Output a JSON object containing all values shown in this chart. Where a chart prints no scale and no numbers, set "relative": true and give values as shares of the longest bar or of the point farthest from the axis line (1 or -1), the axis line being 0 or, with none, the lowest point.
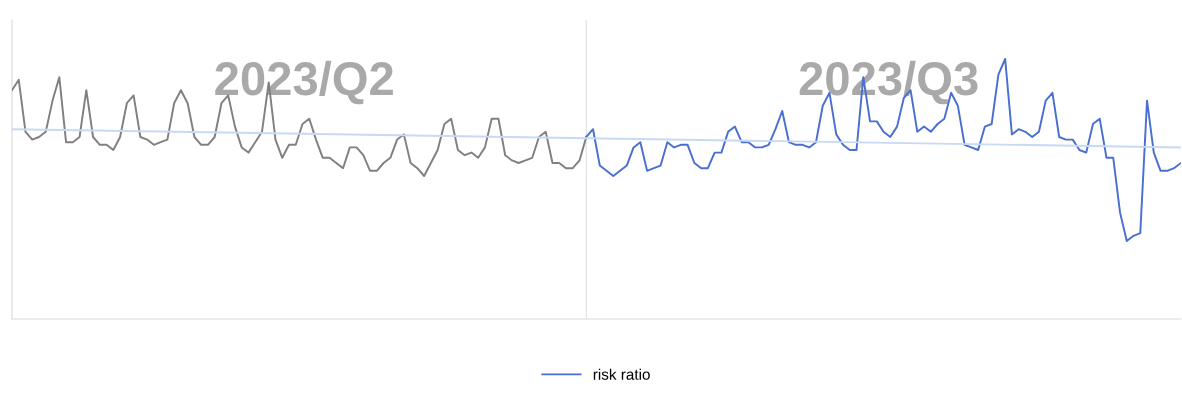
{
  "chart_data": {
    "type": "line",
    "relative": true,
    "legend": "bottom",
    "categories": [
      null,
      null,
      null,
      null,
      null,
      null,
      null,
      null,
      null,
      null,
      null,
      null,
      null,
      null,
      null,
      null,
      null,
      null,
      null,
      null,
      null,
      null,
      null,
      null,
      null,
      null,
      null,
      null,
      null,
      null,
      null,
      null,
      null,
      null,
      null,
      null,
      null,
      null,
      null,
      null,
      null,
      null,
      null,
      null,
      null,
      null,
      null,
      null,
      null,
      null,
      null,
      null,
      null,
      null,
      null,
      null,
      null,
      null,
      null,
      null,
      null,
      null,
      null,
      null,
      null,
      null,
      null,
      null,
      null,
      null,
      null,
      null,
      null,
      null,
      null,
      null,
      null,
      null,
      null,
      null,
      null,
      null,
      null,
      null,
      null,
      null,
      null,
      null,
      null,
      null,
      null,
      null,
      null,
      null,
      null,
      null,
      null,
      null,
      null,
      null,
      null,
      null,
      null,
      null,
      null,
      null,
      null,
      null,
      null,
      null,
      null,
      null,
      null,
      null,
      null,
      null,
      null,
      null,
      null,
      null,
      null,
      null,
      null,
      null,
      null,
      null,
      null,
      null,
      null,
      null,
      null,
      null,
      null,
      null,
      null,
      null,
      null,
      null,
      null,
      null,
      null,
      null,
      null,
      null,
      null,
      null,
      null,
      null,
      null,
      null,
      null,
      null,
      null,
      null,
      null,
      null,
      null,
      null,
      null,
      null,
      null,
      null,
      null,
      null,
      null,
      null,
      null,
      null,
      null,
      null,
      null,
      null,
      null,
      null
    ],
    "series": [
      {
        "color": "#808080",
        "values": [
          0.88,
          0.92,
          0.72,
          0.69,
          0.7,
          0.72,
          0.84,
          0.93,
          0.68,
          0.68,
          0.7,
          0.88,
          0.7,
          0.67,
          0.67,
          0.65,
          0.7,
          0.83,
          0.86,
          0.7,
          0.69,
          0.67,
          0.68,
          0.69,
          0.83,
          0.88,
          0.83,
          0.7,
          0.67,
          0.67,
          0.7,
          0.83,
          0.86,
          0.74,
          0.66,
          0.64,
          0.68,
          0.72,
          0.91,
          0.69,
          0.62,
          0.67,
          0.67,
          0.75,
          0.77,
          0.69,
          0.62,
          0.62,
          0.6,
          0.58,
          0.66,
          0.66,
          0.63,
          0.57,
          0.57,
          0.6,
          0.62,
          0.69,
          0.71,
          0.6,
          0.58,
          0.55,
          0.6,
          0.65,
          0.75,
          0.77,
          0.65,
          0.63,
          0.64,
          0.62,
          0.66,
          0.77,
          0.77,
          0.63,
          0.61,
          0.6,
          0.61,
          0.62,
          0.7,
          0.72,
          0.6,
          0.6,
          0.58,
          0.58,
          0.61,
          0.7,
          null,
          null,
          null,
          null,
          null,
          null,
          null,
          null,
          null,
          null,
          null,
          null,
          null,
          null,
          null,
          null,
          null,
          null,
          null,
          null,
          null,
          null,
          null,
          null,
          null,
          null,
          null,
          null,
          null,
          null,
          null,
          null,
          null,
          null,
          null,
          null,
          null,
          null,
          null,
          null,
          null,
          null,
          null,
          null,
          null,
          null,
          null,
          null,
          null,
          null,
          null,
          null,
          null,
          null,
          null,
          null,
          null,
          null,
          null,
          null,
          null,
          null,
          null,
          null,
          null,
          null,
          null,
          null,
          null,
          null,
          null,
          null,
          null,
          null,
          null,
          null,
          null,
          null,
          null,
          null,
          null,
          null,
          null,
          null,
          null,
          null,
          null,
          null
        ]
      },
      {
        "name": "risk ratio",
        "color": "#4a6fd0",
        "values": [
          null,
          null,
          null,
          null,
          null,
          null,
          null,
          null,
          null,
          null,
          null,
          null,
          null,
          null,
          null,
          null,
          null,
          null,
          null,
          null,
          null,
          null,
          null,
          null,
          null,
          null,
          null,
          null,
          null,
          null,
          null,
          null,
          null,
          null,
          null,
          null,
          null,
          null,
          null,
          null,
          null,
          null,
          null,
          null,
          null,
          null,
          null,
          null,
          null,
          null,
          null,
          null,
          null,
          null,
          null,
          null,
          null,
          null,
          null,
          null,
          null,
          null,
          null,
          null,
          null,
          null,
          null,
          null,
          null,
          null,
          null,
          null,
          null,
          null,
          null,
          null,
          null,
          null,
          null,
          null,
          null,
          null,
          null,
          null,
          null,
          0.7,
          0.73,
          0.59,
          0.57,
          0.55,
          0.57,
          0.59,
          0.66,
          0.68,
          0.57,
          0.58,
          0.59,
          0.68,
          0.66,
          0.67,
          0.67,
          0.6,
          0.58,
          0.58,
          0.64,
          0.64,
          0.72,
          0.74,
          0.68,
          0.68,
          0.66,
          0.66,
          0.67,
          0.73,
          0.8,
          0.68,
          0.67,
          0.67,
          0.66,
          0.68,
          0.82,
          0.87,
          0.71,
          0.67,
          0.65,
          0.65,
          0.93,
          0.76,
          0.76,
          0.72,
          0.7,
          0.74,
          0.85,
          0.88,
          0.72,
          0.74,
          0.72,
          0.75,
          0.77,
          0.87,
          0.82,
          0.67,
          0.66,
          0.65,
          0.74,
          0.75,
          0.94,
          1.0,
          0.71,
          0.73,
          0.72,
          0.7,
          0.72,
          0.84,
          0.87,
          0.7,
          0.69,
          0.69,
          0.65,
          0.64,
          0.75,
          0.77,
          0.62,
          0.62,
          0.41,
          0.3,
          0.32,
          0.33,
          0.84,
          0.64,
          0.57,
          0.57,
          0.58,
          0.6
        ]
      },
      {
        "color": "#c6d9f5",
        "values": [
          0.73,
          null,
          null,
          null,
          null,
          null,
          null,
          null,
          null,
          null,
          null,
          null,
          null,
          null,
          null,
          null,
          null,
          null,
          null,
          null,
          null,
          null,
          null,
          null,
          null,
          null,
          null,
          null,
          null,
          null,
          null,
          null,
          null,
          null,
          null,
          null,
          null,
          null,
          null,
          null,
          null,
          null,
          null,
          null,
          null,
          null,
          null,
          null,
          null,
          null,
          null,
          null,
          null,
          null,
          null,
          null,
          null,
          null,
          null,
          null,
          null,
          null,
          null,
          null,
          null,
          null,
          null,
          null,
          null,
          null,
          null,
          null,
          null,
          null,
          null,
          null,
          null,
          null,
          null,
          null,
          null,
          null,
          null,
          null,
          null,
          null,
          null,
          null,
          null,
          null,
          null,
          null,
          null,
          null,
          null,
          null,
          null,
          null,
          null,
          null,
          null,
          null,
          null,
          null,
          null,
          null,
          null,
          null,
          null,
          null,
          null,
          null,
          null,
          null,
          null,
          null,
          null,
          null,
          null,
          null,
          null,
          null,
          null,
          null,
          null,
          null,
          null,
          null,
          null,
          null,
          null,
          null,
          null,
          null,
          null,
          null,
          null,
          null,
          null,
          null,
          null,
          null,
          null,
          null,
          null,
          null,
          null,
          null,
          null,
          null,
          null,
          null,
          null,
          null,
          null,
          null,
          null,
          null,
          null,
          null,
          null,
          null,
          null,
          null,
          null,
          null,
          null,
          null,
          null,
          null,
          null,
          null,
          null,
          0.66
        ]
      }
    ],
    "annotations": [
      "2023/Q2",
      "2023/Q3"
    ]
  }
}
